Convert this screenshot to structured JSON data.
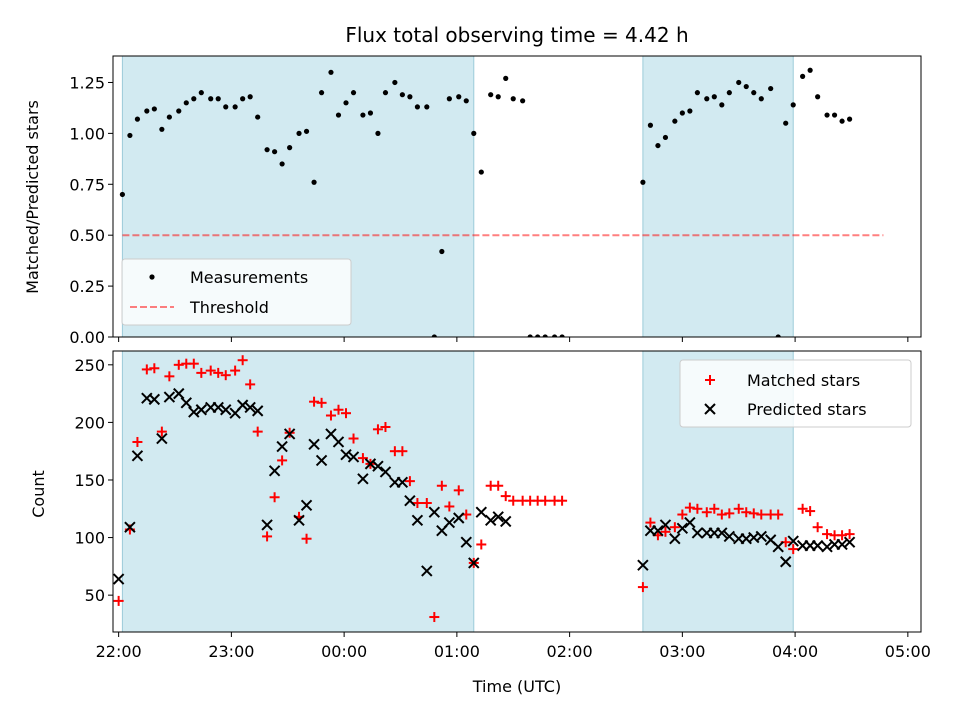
{
  "figure": {
    "title": "Flux total observing time = 4.42 h",
    "xlabel": "Time (UTC)"
  },
  "colors": {
    "shade": "#add8e6",
    "measure": "#000000",
    "threshold": "#ff0000",
    "matched": "#ff0000",
    "predicted": "#000000"
  },
  "chart_data": [
    {
      "type": "scatter",
      "ylabel": "Matched/Predicted stars",
      "xlim": [
        "21:57",
        "05:07"
      ],
      "ylim": [
        0,
        1.38
      ],
      "yticks": [
        0.0,
        0.25,
        0.5,
        0.75,
        1.0,
        1.25
      ],
      "ytick_labels": [
        "0.00",
        "0.25",
        "0.50",
        "0.75",
        "1.00",
        "1.25"
      ],
      "xticks": [
        "22:00",
        "23:00",
        "00:00",
        "01:00",
        "02:00",
        "03:00",
        "04:00",
        "05:00"
      ],
      "shaded_intervals": [
        [
          "22:02",
          "01:09"
        ],
        [
          "02:39",
          "03:59"
        ]
      ],
      "threshold": {
        "name": "Threshold",
        "y": 0.5,
        "x_range": [
          "22:02",
          "04:47"
        ],
        "style": "dashed"
      },
      "legend": {
        "placement": "lower-left",
        "entries": [
          "Measurements",
          "Threshold"
        ]
      },
      "series": [
        {
          "name": "Measurements",
          "points": [
            [
              "22:02",
              0.7
            ],
            [
              "22:06",
              0.99
            ],
            [
              "22:10",
              1.07
            ],
            [
              "22:15",
              1.11
            ],
            [
              "22:19",
              1.12
            ],
            [
              "22:23",
              1.02
            ],
            [
              "22:27",
              1.08
            ],
            [
              "22:32",
              1.11
            ],
            [
              "22:36",
              1.15
            ],
            [
              "22:40",
              1.17
            ],
            [
              "22:44",
              1.2
            ],
            [
              "22:49",
              1.17
            ],
            [
              "22:53",
              1.17
            ],
            [
              "22:57",
              1.13
            ],
            [
              "23:02",
              1.13
            ],
            [
              "23:06",
              1.17
            ],
            [
              "23:10",
              1.18
            ],
            [
              "23:14",
              1.08
            ],
            [
              "23:19",
              0.92
            ],
            [
              "23:23",
              0.91
            ],
            [
              "23:27",
              0.85
            ],
            [
              "23:31",
              0.93
            ],
            [
              "23:36",
              1.0
            ],
            [
              "23:40",
              1.01
            ],
            [
              "23:44",
              0.76
            ],
            [
              "23:48",
              1.2
            ],
            [
              "23:53",
              1.3
            ],
            [
              "23:57",
              1.09
            ],
            [
              "00:01",
              1.15
            ],
            [
              "00:05",
              1.2
            ],
            [
              "00:10",
              1.09
            ],
            [
              "00:14",
              1.1
            ],
            [
              "00:18",
              1.0
            ],
            [
              "00:22",
              1.2
            ],
            [
              "00:27",
              1.25
            ],
            [
              "00:31",
              1.19
            ],
            [
              "00:35",
              1.18
            ],
            [
              "00:39",
              1.13
            ],
            [
              "00:44",
              1.13
            ],
            [
              "00:48",
              0.0
            ],
            [
              "00:52",
              0.42
            ],
            [
              "00:56",
              1.17
            ],
            [
              "01:01",
              1.18
            ],
            [
              "01:05",
              1.16
            ],
            [
              "01:09",
              1.0
            ],
            [
              "01:13",
              0.81
            ],
            [
              "01:18",
              1.19
            ],
            [
              "01:22",
              1.18
            ],
            [
              "01:26",
              1.27
            ],
            [
              "01:30",
              1.17
            ],
            [
              "01:35",
              1.16
            ],
            [
              "01:39",
              0.0
            ],
            [
              "01:43",
              0.0
            ],
            [
              "01:47",
              0.0
            ],
            [
              "01:52",
              0.0
            ],
            [
              "01:56",
              0.0
            ],
            [
              "02:39",
              0.76
            ],
            [
              "02:43",
              1.04
            ],
            [
              "02:47",
              0.94
            ],
            [
              "02:51",
              0.98
            ],
            [
              "02:56",
              1.06
            ],
            [
              "03:00",
              1.1
            ],
            [
              "03:04",
              1.11
            ],
            [
              "03:08",
              1.2
            ],
            [
              "03:13",
              1.17
            ],
            [
              "03:17",
              1.18
            ],
            [
              "03:21",
              1.14
            ],
            [
              "03:25",
              1.2
            ],
            [
              "03:30",
              1.25
            ],
            [
              "03:34",
              1.23
            ],
            [
              "03:38",
              1.2
            ],
            [
              "03:42",
              1.17
            ],
            [
              "03:47",
              1.22
            ],
            [
              "03:51",
              0.0
            ],
            [
              "03:55",
              1.05
            ],
            [
              "03:59",
              1.14
            ],
            [
              "04:04",
              1.28
            ],
            [
              "04:08",
              1.31
            ],
            [
              "04:12",
              1.18
            ],
            [
              "04:17",
              1.09
            ],
            [
              "04:21",
              1.09
            ],
            [
              "04:25",
              1.06
            ],
            [
              "04:29",
              1.07
            ]
          ]
        }
      ]
    },
    {
      "type": "scatter",
      "ylabel": "Count",
      "xlabel": "Time (UTC)",
      "xlim": [
        "21:57",
        "05:07"
      ],
      "ylim": [
        18,
        262
      ],
      "yticks": [
        50,
        100,
        150,
        200,
        250
      ],
      "ytick_labels": [
        "50",
        "100",
        "150",
        "200",
        "250"
      ],
      "xticks": [
        "22:00",
        "23:00",
        "00:00",
        "01:00",
        "02:00",
        "03:00",
        "04:00",
        "05:00"
      ],
      "shaded_intervals": [
        [
          "22:02",
          "01:09"
        ],
        [
          "02:39",
          "03:59"
        ]
      ],
      "legend": {
        "placement": "upper-right",
        "entries": [
          "Matched stars",
          "Predicted stars"
        ]
      },
      "series": [
        {
          "name": "Matched stars",
          "marker": "plus",
          "points": [
            [
              "22:00",
              45
            ],
            [
              "22:06",
              107
            ],
            [
              "22:10",
              183
            ],
            [
              "22:15",
              246
            ],
            [
              "22:19",
              247
            ],
            [
              "22:23",
              192
            ],
            [
              "22:27",
              240
            ],
            [
              "22:32",
              250
            ],
            [
              "22:36",
              251
            ],
            [
              "22:40",
              251
            ],
            [
              "22:44",
              243
            ],
            [
              "22:49",
              245
            ],
            [
              "22:53",
              243
            ],
            [
              "22:57",
              241
            ],
            [
              "23:02",
              245
            ],
            [
              "23:06",
              254
            ],
            [
              "23:10",
              233
            ],
            [
              "23:14",
              192
            ],
            [
              "23:19",
              101
            ],
            [
              "23:23",
              135
            ],
            [
              "23:27",
              167
            ],
            [
              "23:31",
              191
            ],
            [
              "23:36",
              118
            ],
            [
              "23:40",
              99
            ],
            [
              "23:44",
              218
            ],
            [
              "23:48",
              217
            ],
            [
              "23:53",
              206
            ],
            [
              "23:57",
              211
            ],
            [
              "00:01",
              208
            ],
            [
              "00:05",
              186
            ],
            [
              "00:10",
              169
            ],
            [
              "00:14",
              164
            ],
            [
              "00:18",
              194
            ],
            [
              "00:22",
              196
            ],
            [
              "00:27",
              175
            ],
            [
              "00:31",
              175
            ],
            [
              "00:35",
              149
            ],
            [
              "00:39",
              130
            ],
            [
              "00:44",
              130
            ],
            [
              "00:48",
              31
            ],
            [
              "00:52",
              145
            ],
            [
              "00:56",
              127
            ],
            [
              "01:01",
              141
            ],
            [
              "01:05",
              120
            ],
            [
              "01:09",
              78
            ],
            [
              "01:13",
              94
            ],
            [
              "01:18",
              145
            ],
            [
              "01:22",
              145
            ],
            [
              "01:26",
              136
            ],
            [
              "01:30",
              132
            ],
            [
              "01:35",
              132
            ],
            [
              "01:39",
              132
            ],
            [
              "01:43",
              132
            ],
            [
              "01:47",
              132
            ],
            [
              "01:52",
              132
            ],
            [
              "01:56",
              132
            ],
            [
              "02:39",
              57
            ],
            [
              "02:43",
              113
            ],
            [
              "02:47",
              102
            ],
            [
              "02:51",
              105
            ],
            [
              "02:56",
              109
            ],
            [
              "03:00",
              120
            ],
            [
              "03:04",
              126
            ],
            [
              "03:08",
              125
            ],
            [
              "03:13",
              122
            ],
            [
              "03:17",
              125
            ],
            [
              "03:21",
              120
            ],
            [
              "03:25",
              121
            ],
            [
              "03:30",
              125
            ],
            [
              "03:34",
              122
            ],
            [
              "03:38",
              121
            ],
            [
              "03:42",
              120
            ],
            [
              "03:47",
              120
            ],
            [
              "03:51",
              120
            ],
            [
              "03:55",
              96
            ],
            [
              "03:59",
              90
            ],
            [
              "04:04",
              125
            ],
            [
              "04:08",
              123
            ],
            [
              "04:12",
              109
            ],
            [
              "04:17",
              103
            ],
            [
              "04:21",
              102
            ],
            [
              "04:25",
              102
            ],
            [
              "04:29",
              103
            ]
          ]
        },
        {
          "name": "Predicted stars",
          "marker": "x",
          "points": [
            [
              "22:00",
              64
            ],
            [
              "22:06",
              109
            ],
            [
              "22:10",
              171
            ],
            [
              "22:15",
              221
            ],
            [
              "22:19",
              220
            ],
            [
              "22:23",
              186
            ],
            [
              "22:27",
              222
            ],
            [
              "22:32",
              225
            ],
            [
              "22:36",
              217
            ],
            [
              "22:40",
              209
            ],
            [
              "22:44",
              211
            ],
            [
              "22:49",
              213
            ],
            [
              "22:53",
              213
            ],
            [
              "22:57",
              211
            ],
            [
              "23:02",
              208
            ],
            [
              "23:06",
              215
            ],
            [
              "23:10",
              213
            ],
            [
              "23:14",
              210
            ],
            [
              "23:19",
              111
            ],
            [
              "23:23",
              158
            ],
            [
              "23:27",
              179
            ],
            [
              "23:31",
              190
            ],
            [
              "23:36",
              115
            ],
            [
              "23:40",
              128
            ],
            [
              "23:44",
              181
            ],
            [
              "23:48",
              167
            ],
            [
              "23:53",
              190
            ],
            [
              "23:57",
              183
            ],
            [
              "00:01",
              172
            ],
            [
              "00:05",
              170
            ],
            [
              "00:10",
              151
            ],
            [
              "00:14",
              164
            ],
            [
              "00:18",
              162
            ],
            [
              "00:22",
              157
            ],
            [
              "00:27",
              148
            ],
            [
              "00:31",
              148
            ],
            [
              "00:35",
              132
            ],
            [
              "00:39",
              115
            ],
            [
              "00:44",
              71
            ],
            [
              "00:48",
              122
            ],
            [
              "00:52",
              106
            ],
            [
              "00:56",
              113
            ],
            [
              "01:01",
              117
            ],
            [
              "01:05",
              96
            ],
            [
              "01:09",
              78
            ],
            [
              "01:13",
              122
            ],
            [
              "01:18",
              115
            ],
            [
              "01:22",
              118
            ],
            [
              "01:26",
              114
            ],
            [
              "02:39",
              76
            ],
            [
              "02:43",
              106
            ],
            [
              "02:47",
              106
            ],
            [
              "02:51",
              111
            ],
            [
              "02:56",
              99
            ],
            [
              "03:00",
              108
            ],
            [
              "03:04",
              113
            ],
            [
              "03:08",
              104
            ],
            [
              "03:13",
              104
            ],
            [
              "03:17",
              104
            ],
            [
              "03:21",
              104
            ],
            [
              "03:25",
              101
            ],
            [
              "03:30",
              99
            ],
            [
              "03:34",
              99
            ],
            [
              "03:38",
              100
            ],
            [
              "03:42",
              101
            ],
            [
              "03:47",
              98
            ],
            [
              "03:51",
              92
            ],
            [
              "03:55",
              79
            ],
            [
              "03:59",
              97
            ],
            [
              "04:04",
              93
            ],
            [
              "04:08",
              93
            ],
            [
              "04:12",
              93
            ],
            [
              "04:17",
              92
            ],
            [
              "04:21",
              94
            ],
            [
              "04:25",
              94
            ],
            [
              "04:29",
              96
            ]
          ]
        }
      ]
    }
  ]
}
